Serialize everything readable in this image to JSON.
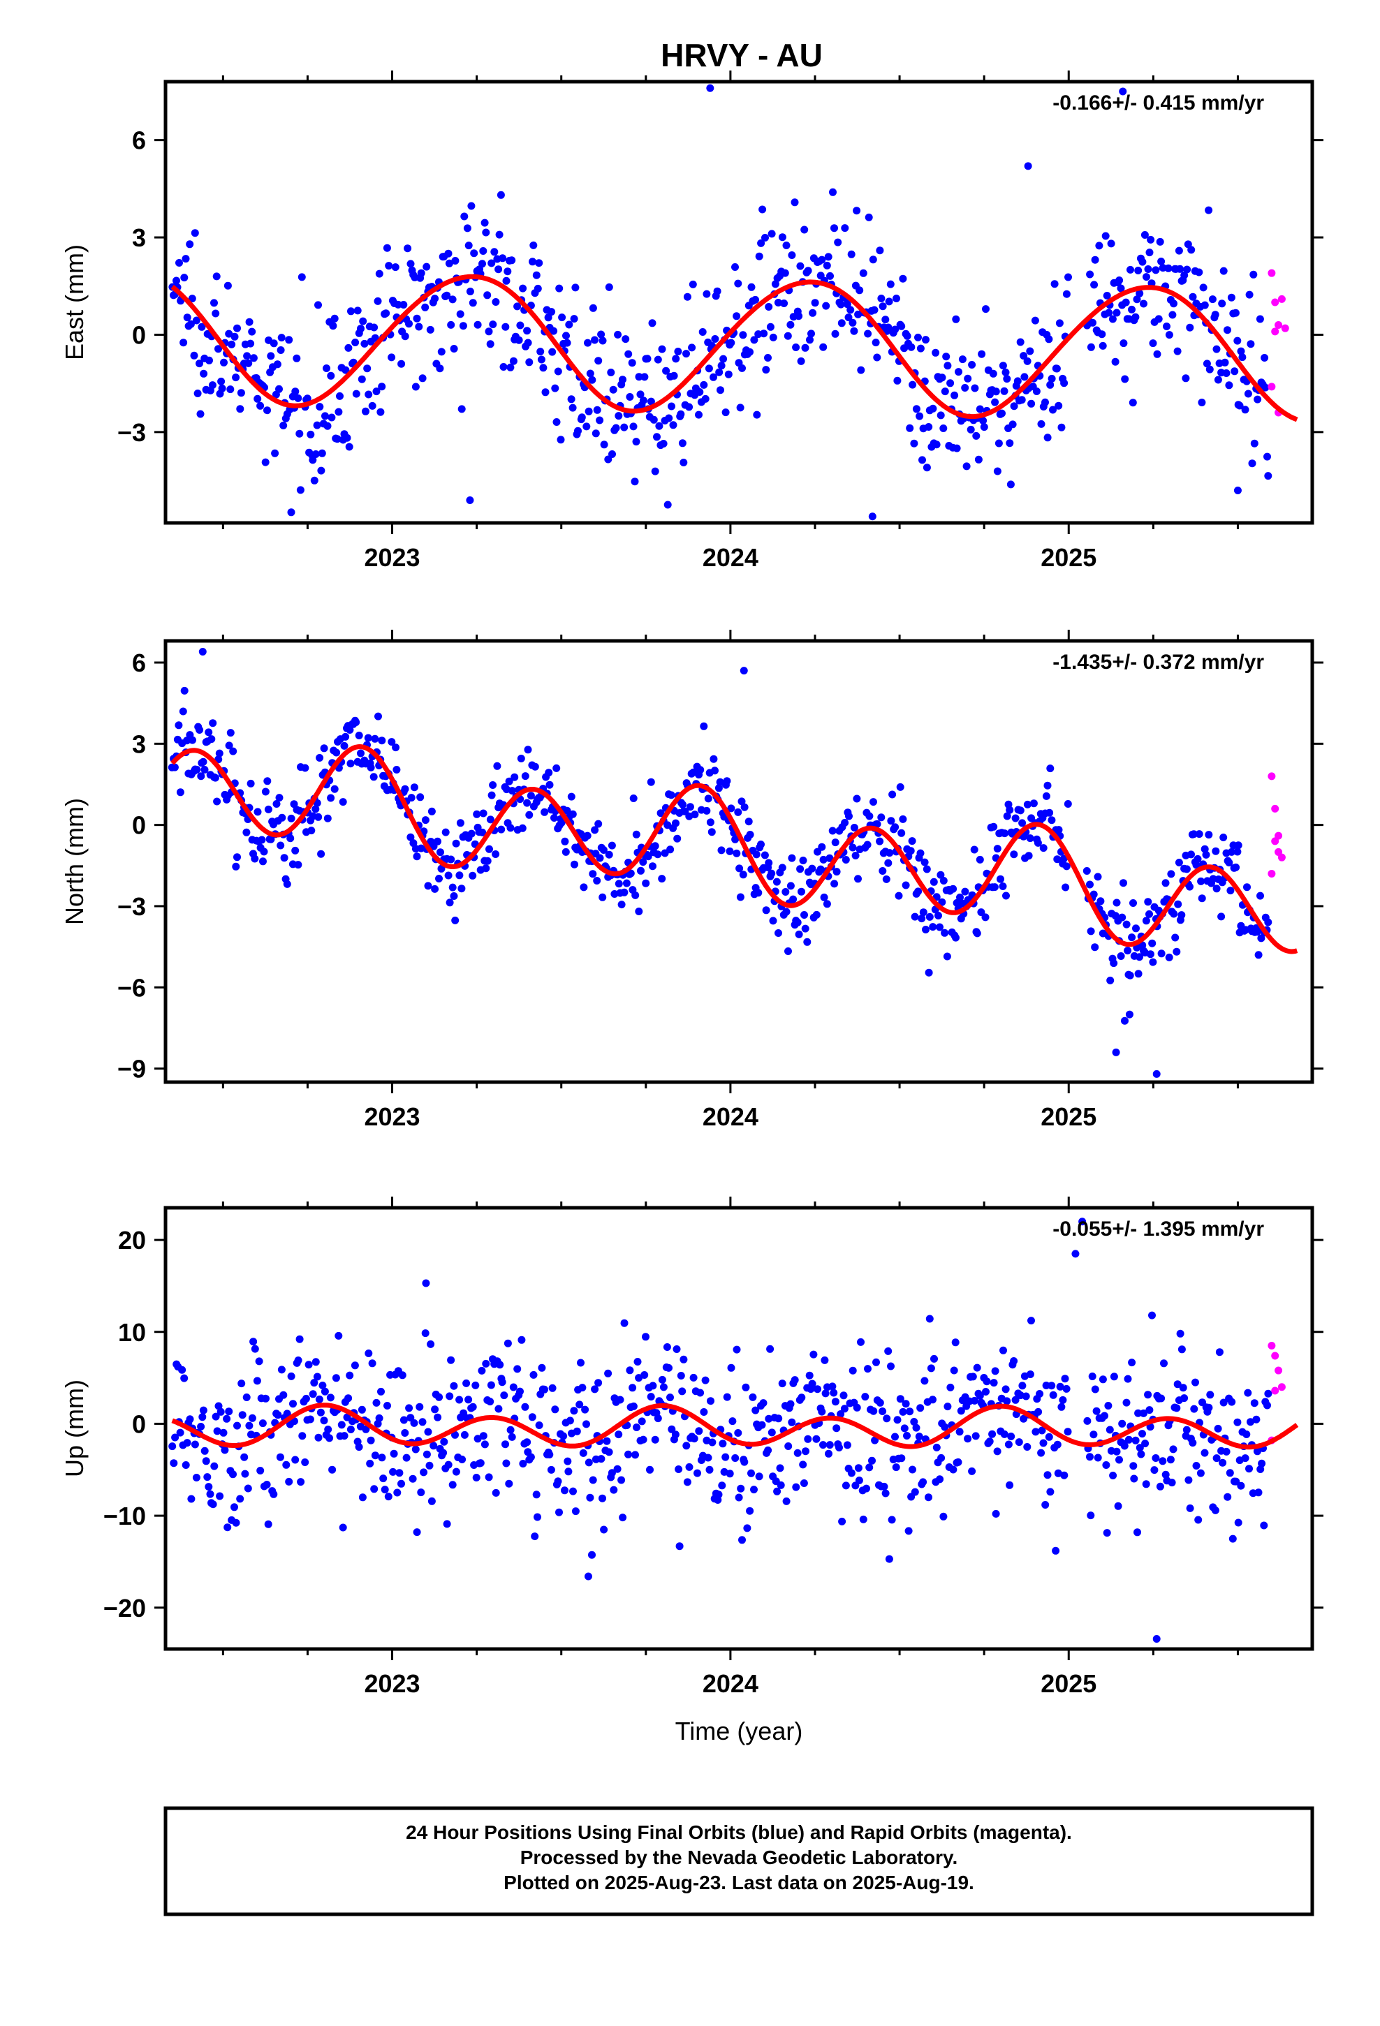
{
  "title": "HRVY - AU",
  "colors": {
    "final": "#0000ff",
    "rapid": "#ff00ff",
    "model": "#ff0000",
    "axis": "#000000"
  },
  "footer": {
    "line1": "24 Hour Positions Using Final Orbits (blue) and Rapid Orbits (magenta).",
    "line2": "Processed by the Nevada Geodetic Laboratory.",
    "line3": "Plotted on 2025-Aug-23. Last data on 2025-Aug-19."
  },
  "chart_data": [
    {
      "type": "scatter",
      "panel": "east",
      "ylabel": "East (mm)",
      "rate": "-0.166+/- 0.415 mm/yr",
      "xlabel": "",
      "xlim": [
        2022.33,
        2025.72
      ],
      "ylim": [
        -5.8,
        7.8
      ],
      "xticks": [
        2023,
        2024,
        2025
      ],
      "yticks": [
        -3,
        0,
        3,
        6
      ],
      "model": {
        "offset": -0.3,
        "trend": -0.166,
        "x0": 2024.0,
        "annual": [
          0.33,
          2.0
        ],
        "semiannual": [
          0.04,
          -0.1
        ],
        "noise_sd": 1.2
      },
      "rapid": {
        "x": [
          2025.6,
          2025.61,
          2025.62,
          2025.63,
          2025.6,
          2025.62,
          2025.61,
          2025.64
        ],
        "y": [
          1.9,
          1.0,
          0.3,
          1.1,
          -1.6,
          -2.4,
          0.1,
          0.2
        ]
      },
      "outliers": {
        "x": [
          2024.42,
          2024.88,
          2025.16,
          2025.5,
          2023.23,
          2023.94
        ],
        "y": [
          -5.6,
          5.2,
          7.5,
          -4.8,
          -5.1,
          7.6
        ]
      }
    },
    {
      "type": "scatter",
      "panel": "north",
      "ylabel": "North (mm)",
      "rate": "-1.435+/- 0.372 mm/yr",
      "xlabel": "",
      "xlim": [
        2022.33,
        2025.72
      ],
      "ylim": [
        -9.5,
        6.8
      ],
      "xticks": [
        2023,
        2024,
        2025
      ],
      "yticks": [
        -9,
        -6,
        -3,
        0,
        3,
        6
      ],
      "model": {
        "offset": -0.8,
        "trend": -1.435,
        "x0": 2024.0,
        "annual": [
          0.25,
          -0.4
        ],
        "semiannual": [
          0.8,
          -1.5
        ],
        "noise_sd": 0.9
      },
      "rapid": {
        "x": [
          2025.6,
          2025.61,
          2025.62,
          2025.63,
          2025.6,
          2025.62,
          2025.61
        ],
        "y": [
          1.8,
          0.6,
          -0.4,
          -1.2,
          -1.8,
          -1.0,
          -0.6
        ]
      },
      "outliers": {
        "x": [
          2025.14,
          2025.26,
          2022.44,
          2024.04,
          2025.18
        ],
        "y": [
          -8.4,
          -9.2,
          6.4,
          5.7,
          -7.0
        ]
      }
    },
    {
      "type": "scatter",
      "panel": "up",
      "ylabel": "Up (mm)",
      "rate": "-0.055+/- 1.395 mm/yr",
      "xlabel": "Time (year)",
      "xlim": [
        2022.33,
        2025.72
      ],
      "ylim": [
        -24.5,
        23.5
      ],
      "xticks": [
        2023,
        2024,
        2025
      ],
      "yticks": [
        -20,
        -10,
        0,
        10,
        20
      ],
      "model": {
        "offset": -0.5,
        "trend": -0.055,
        "x0": 2024.0,
        "annual": [
          0.3,
          -0.6
        ],
        "semiannual": [
          -1.5,
          -1.0
        ],
        "noise_sd": 4.5
      },
      "rapid": {
        "x": [
          2025.6,
          2025.61,
          2025.62,
          2025.63,
          2025.61,
          2025.6
        ],
        "y": [
          8.5,
          7.4,
          5.8,
          4.0,
          3.6,
          -1.8
        ]
      },
      "outliers": {
        "x": [
          2025.04,
          2025.26,
          2023.58,
          2025.02,
          2023.1
        ],
        "y": [
          22.0,
          -23.4,
          -16.6,
          18.5,
          15.3
        ]
      }
    }
  ]
}
